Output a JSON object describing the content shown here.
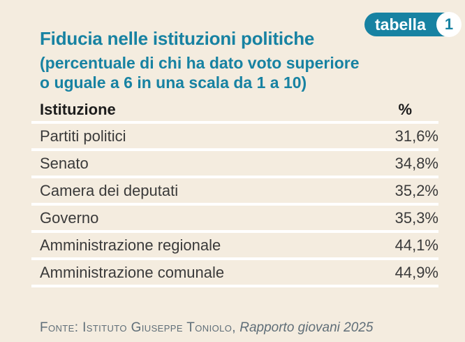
{
  "badge": {
    "label": "tabella",
    "number": "1"
  },
  "header": {
    "title": "Fiducia nelle istituzioni politiche",
    "subtitle_line1": "(percentuale di chi ha dato voto superiore",
    "subtitle_line2": "o uguale a 6 in una scala da 1 a 10)"
  },
  "table": {
    "col_institution": "Istituzione",
    "col_percent": "%",
    "rows": [
      {
        "label": "Partiti politici",
        "value": "31,6%"
      },
      {
        "label": "Senato",
        "value": "34,8%"
      },
      {
        "label": "Camera dei deputati",
        "value": "35,2%"
      },
      {
        "label": "Governo",
        "value": "35,3%"
      },
      {
        "label": "Amministrazione regionale",
        "value": "44,1%"
      },
      {
        "label": "Amministrazione comunale",
        "value": "44,9%"
      }
    ]
  },
  "footer": {
    "source_label": "Fonte: Istituto Giuseppe Toniolo,",
    "source_work": "Rapporto giovani 2025"
  },
  "colors": {
    "background": "#f4ecdf",
    "accent": "#1782a2",
    "row_text": "#3a3a3a",
    "separator": "#ffffff",
    "footer_text": "#5f6e78"
  },
  "chart_data": {
    "type": "table",
    "title": "Fiducia nelle istituzioni politiche",
    "subtitle": "(percentuale di chi ha dato voto superiore o uguale a 6 in una scala da 1 a 10)",
    "columns": [
      "Istituzione",
      "%"
    ],
    "categories": [
      "Partiti politici",
      "Senato",
      "Camera dei deputati",
      "Governo",
      "Amministrazione regionale",
      "Amministrazione comunale"
    ],
    "values": [
      31.6,
      34.8,
      35.2,
      35.3,
      44.1,
      44.9
    ],
    "source": "Fonte: Istituto Giuseppe Toniolo, Rapporto giovani 2025"
  }
}
